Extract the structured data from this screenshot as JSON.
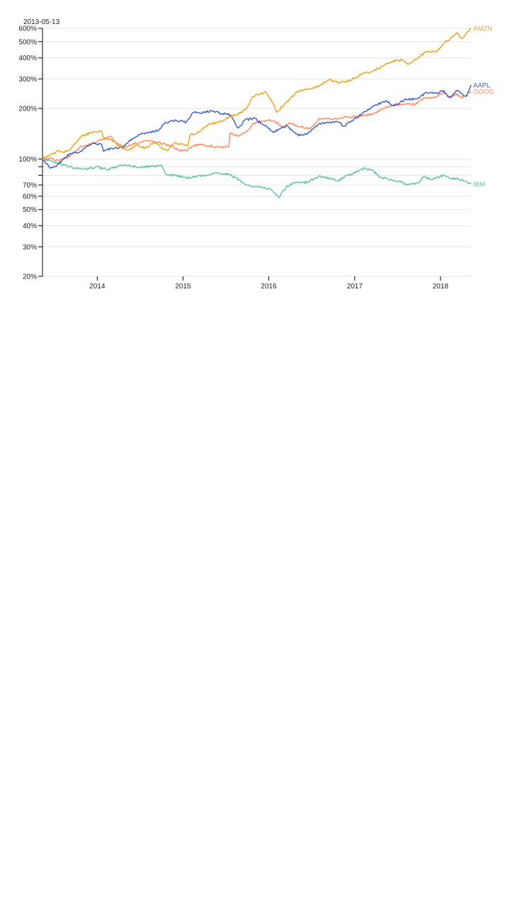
{
  "chart_data": {
    "type": "line",
    "title": "",
    "xlabel": "",
    "ylabel": "",
    "y_scale": "log",
    "grid": true,
    "focus_date": "2013-05-13",
    "x_range": [
      "2013-05-13",
      "2018-05-11"
    ],
    "x_ticks": [
      "2014",
      "2015",
      "2016",
      "2017",
      "2018"
    ],
    "ylim": [
      20,
      600
    ],
    "y_ticks": [
      {
        "value": 20,
        "label": "20%"
      },
      {
        "value": 30,
        "label": "30%"
      },
      {
        "value": 40,
        "label": "40%"
      },
      {
        "value": 50,
        "label": "50%"
      },
      {
        "value": 60,
        "label": "60%"
      },
      {
        "value": 70,
        "label": "70%"
      },
      {
        "value": 80,
        "label": ""
      },
      {
        "value": 90,
        "label": ""
      },
      {
        "value": 100,
        "label": "100%"
      },
      {
        "value": 200,
        "label": "200%"
      },
      {
        "value": 300,
        "label": "300%"
      },
      {
        "value": 400,
        "label": "400%"
      },
      {
        "value": 500,
        "label": "500%"
      },
      {
        "value": 600,
        "label": "600%"
      }
    ],
    "series": [
      {
        "name": "IBM",
        "color": "#66c2a5",
        "points": [
          [
            "2013-05-13",
            100
          ],
          [
            "2013-07-01",
            96
          ],
          [
            "2013-08-15",
            92
          ],
          [
            "2013-10-01",
            88
          ],
          [
            "2013-11-15",
            87
          ],
          [
            "2014-01-01",
            90
          ],
          [
            "2014-02-15",
            86
          ],
          [
            "2014-04-01",
            91
          ],
          [
            "2014-05-15",
            92
          ],
          [
            "2014-07-01",
            89
          ],
          [
            "2014-08-15",
            90
          ],
          [
            "2014-10-01",
            92
          ],
          [
            "2014-10-20",
            81
          ],
          [
            "2014-12-01",
            80
          ],
          [
            "2015-01-15",
            77
          ],
          [
            "2015-03-01",
            79
          ],
          [
            "2015-04-15",
            80
          ],
          [
            "2015-05-20",
            83
          ],
          [
            "2015-07-01",
            82
          ],
          [
            "2015-08-15",
            77
          ],
          [
            "2015-09-15",
            72
          ],
          [
            "2015-10-20",
            69
          ],
          [
            "2015-12-01",
            68
          ],
          [
            "2016-01-10",
            66
          ],
          [
            "2016-02-12",
            59
          ],
          [
            "2016-03-15",
            68
          ],
          [
            "2016-04-15",
            72
          ],
          [
            "2016-05-15",
            72
          ],
          [
            "2016-06-15",
            73
          ],
          [
            "2016-08-01",
            79
          ],
          [
            "2016-09-15",
            77
          ],
          [
            "2016-10-20",
            74
          ],
          [
            "2016-12-01",
            80
          ],
          [
            "2017-01-15",
            84
          ],
          [
            "2017-02-15",
            88
          ],
          [
            "2017-03-15",
            86
          ],
          [
            "2017-04-20",
            78
          ],
          [
            "2017-06-01",
            75
          ],
          [
            "2017-07-15",
            73
          ],
          [
            "2017-08-15",
            70
          ],
          [
            "2017-10-01",
            72
          ],
          [
            "2017-10-20",
            78
          ],
          [
            "2017-12-01",
            76
          ],
          [
            "2018-01-15",
            80
          ],
          [
            "2018-02-15",
            76
          ],
          [
            "2018-03-15",
            77
          ],
          [
            "2018-04-15",
            74
          ],
          [
            "2018-05-11",
            71
          ]
        ]
      },
      {
        "name": "GOOG",
        "color": "#fc8d62",
        "points": [
          [
            "2013-05-13",
            100
          ],
          [
            "2013-06-15",
            101
          ],
          [
            "2013-07-20",
            98
          ],
          [
            "2013-08-15",
            100
          ],
          [
            "2013-10-01",
            110
          ],
          [
            "2013-10-20",
            118
          ],
          [
            "2013-12-01",
            122
          ],
          [
            "2014-01-15",
            130
          ],
          [
            "2014-02-25",
            137
          ],
          [
            "2014-03-20",
            125
          ],
          [
            "2014-05-01",
            118
          ],
          [
            "2014-06-15",
            124
          ],
          [
            "2014-08-01",
            128
          ],
          [
            "2014-09-15",
            126
          ],
          [
            "2014-11-01",
            121
          ],
          [
            "2014-12-15",
            113
          ],
          [
            "2015-01-15",
            112
          ],
          [
            "2015-03-01",
            122
          ],
          [
            "2015-04-15",
            120
          ],
          [
            "2015-06-01",
            118
          ],
          [
            "2015-07-15",
            118
          ],
          [
            "2015-07-20",
            143
          ],
          [
            "2015-08-25",
            137
          ],
          [
            "2015-10-01",
            146
          ],
          [
            "2015-10-25",
            162
          ],
          [
            "2015-12-01",
            168
          ],
          [
            "2016-01-01",
            170
          ],
          [
            "2016-02-05",
            165
          ],
          [
            "2016-02-25",
            155
          ],
          [
            "2016-04-01",
            163
          ],
          [
            "2016-05-01",
            157
          ],
          [
            "2016-06-25",
            152
          ],
          [
            "2016-08-01",
            172
          ],
          [
            "2016-09-15",
            174
          ],
          [
            "2016-11-01",
            175
          ],
          [
            "2016-12-15",
            178
          ],
          [
            "2017-02-01",
            182
          ],
          [
            "2017-03-15",
            185
          ],
          [
            "2017-05-01",
            200
          ],
          [
            "2017-06-15",
            209
          ],
          [
            "2017-08-01",
            211
          ],
          [
            "2017-09-15",
            212
          ],
          [
            "2017-10-20",
            230
          ],
          [
            "2017-12-01",
            232
          ],
          [
            "2018-01-15",
            250
          ],
          [
            "2018-02-08",
            232
          ],
          [
            "2018-03-10",
            245
          ],
          [
            "2018-04-01",
            231
          ],
          [
            "2018-05-11",
            253
          ]
        ]
      },
      {
        "name": "AAPL",
        "color": "#4063c5",
        "points": [
          [
            "2013-05-13",
            100
          ],
          [
            "2013-06-15",
            88
          ],
          [
            "2013-07-05",
            90
          ],
          [
            "2013-08-15",
            102
          ],
          [
            "2013-09-10",
            108
          ],
          [
            "2013-10-15",
            109
          ],
          [
            "2013-11-15",
            118
          ],
          [
            "2013-12-15",
            124
          ],
          [
            "2014-01-20",
            122
          ],
          [
            "2014-01-28",
            111
          ],
          [
            "2014-03-01",
            116
          ],
          [
            "2014-04-20",
            118
          ],
          [
            "2014-05-15",
            127
          ],
          [
            "2014-07-01",
            140
          ],
          [
            "2014-08-15",
            145
          ],
          [
            "2014-09-15",
            148
          ],
          [
            "2014-10-20",
            165
          ],
          [
            "2014-12-01",
            170
          ],
          [
            "2015-01-15",
            165
          ],
          [
            "2015-02-15",
            190
          ],
          [
            "2015-03-15",
            187
          ],
          [
            "2015-05-01",
            194
          ],
          [
            "2015-06-15",
            186
          ],
          [
            "2015-07-22",
            183
          ],
          [
            "2015-08-24",
            153
          ],
          [
            "2015-09-20",
            170
          ],
          [
            "2015-11-01",
            175
          ],
          [
            "2015-12-15",
            158
          ],
          [
            "2016-01-20",
            144
          ],
          [
            "2016-03-15",
            158
          ],
          [
            "2016-04-25",
            141
          ],
          [
            "2016-05-15",
            138
          ],
          [
            "2016-06-15",
            142
          ],
          [
            "2016-08-01",
            162
          ],
          [
            "2016-09-15",
            166
          ],
          [
            "2016-10-25",
            166
          ],
          [
            "2016-11-15",
            157
          ],
          [
            "2016-12-15",
            167
          ],
          [
            "2017-02-01",
            186
          ],
          [
            "2017-03-15",
            205
          ],
          [
            "2017-05-15",
            223
          ],
          [
            "2017-06-15",
            207
          ],
          [
            "2017-08-01",
            225
          ],
          [
            "2017-09-15",
            228
          ],
          [
            "2017-11-05",
            248
          ],
          [
            "2017-12-15",
            248
          ],
          [
            "2018-01-15",
            256
          ],
          [
            "2018-02-08",
            232
          ],
          [
            "2018-03-10",
            256
          ],
          [
            "2018-04-20",
            236
          ],
          [
            "2018-05-01",
            252
          ],
          [
            "2018-05-11",
            276
          ]
        ]
      },
      {
        "name": "AMZN",
        "color": "#e5a823",
        "points": [
          [
            "2013-05-13",
            100
          ],
          [
            "2013-06-15",
            106
          ],
          [
            "2013-07-20",
            112
          ],
          [
            "2013-08-15",
            110
          ],
          [
            "2013-09-15",
            117
          ],
          [
            "2013-10-25",
            136
          ],
          [
            "2013-12-15",
            145
          ],
          [
            "2014-01-20",
            146
          ],
          [
            "2014-01-31",
            132
          ],
          [
            "2014-03-01",
            131
          ],
          [
            "2014-04-15",
            117
          ],
          [
            "2014-05-15",
            113
          ],
          [
            "2014-06-15",
            121
          ],
          [
            "2014-07-25",
            116
          ],
          [
            "2014-09-01",
            125
          ],
          [
            "2014-10-24",
            112
          ],
          [
            "2014-12-01",
            125
          ],
          [
            "2015-01-20",
            119
          ],
          [
            "2015-01-31",
            139
          ],
          [
            "2015-03-01",
            143
          ],
          [
            "2015-04-24",
            162
          ],
          [
            "2015-06-01",
            165
          ],
          [
            "2015-07-23",
            179
          ],
          [
            "2015-08-24",
            185
          ],
          [
            "2015-10-01",
            202
          ],
          [
            "2015-10-23",
            235
          ],
          [
            "2015-12-20",
            250
          ],
          [
            "2016-01-20",
            213
          ],
          [
            "2016-02-05",
            190
          ],
          [
            "2016-03-15",
            216
          ],
          [
            "2016-04-29",
            252
          ],
          [
            "2016-06-15",
            262
          ],
          [
            "2016-07-20",
            268
          ],
          [
            "2016-09-15",
            296
          ],
          [
            "2016-10-28",
            283
          ],
          [
            "2016-12-15",
            295
          ],
          [
            "2017-01-31",
            320
          ],
          [
            "2017-03-15",
            331
          ],
          [
            "2017-05-01",
            359
          ],
          [
            "2017-06-15",
            385
          ],
          [
            "2017-07-25",
            387
          ],
          [
            "2017-08-20",
            368
          ],
          [
            "2017-10-27",
            431
          ],
          [
            "2017-12-15",
            436
          ],
          [
            "2018-01-20",
            497
          ],
          [
            "2018-02-08",
            510
          ],
          [
            "2018-03-10",
            565
          ],
          [
            "2018-04-01",
            521
          ],
          [
            "2018-04-27",
            575
          ],
          [
            "2018-05-11",
            600
          ]
        ]
      }
    ]
  }
}
